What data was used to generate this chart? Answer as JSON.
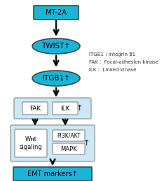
{
  "bg_color": "#ffffff",
  "cyan_color": "#1ab4d7",
  "light_blue_box": "#cce8f4",
  "white_box": "#ffffff",
  "text_color": "#000000",
  "dark": "#111111",
  "edge_dark": "#444444",
  "edge_light": "#888888",
  "legend_lines": [
    "ITGB1 : Integrin β1",
    "FAK :  Focal-adhesion kinase",
    "ILK :  Linked kinase"
  ],
  "figsize": [
    2.31,
    2.59
  ],
  "dpi": 100
}
